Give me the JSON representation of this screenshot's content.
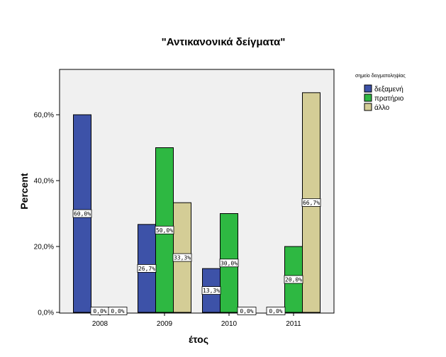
{
  "chart_data": {
    "type": "bar",
    "title": "\"Αντικανονικά δείγματα\"",
    "xlabel": "έτος",
    "ylabel": "Percent",
    "categories": [
      "2008",
      "2009",
      "2010",
      "2011"
    ],
    "ylim": [
      0,
      70
    ],
    "yticks": [
      "0,0%",
      "20,0%",
      "40,0%",
      "60,0%"
    ],
    "grid": false,
    "legend_title": "σημείο δειγματοληψίας",
    "legend_position": "top-right",
    "series": [
      {
        "name": "δεξαμενή",
        "color": "#3d52a8",
        "values": [
          60.0,
          26.7,
          13.3,
          0.0
        ],
        "labels": [
          "60,0%",
          "26,7%",
          "13,3%",
          "0,0%"
        ]
      },
      {
        "name": "πρατήριο",
        "color": "#2eb842",
        "values": [
          0.0,
          50.0,
          30.0,
          20.0
        ],
        "labels": [
          "0,0%",
          "50,0%",
          "30,0%",
          "20,0%"
        ]
      },
      {
        "name": "άλλο",
        "color": "#d4cd96",
        "values": [
          0.0,
          33.3,
          0.0,
          66.7
        ],
        "labels": [
          "0,0%",
          "33,3%",
          "0,0%",
          "66,7%"
        ]
      }
    ]
  },
  "plot_background": "#f0f0f0"
}
